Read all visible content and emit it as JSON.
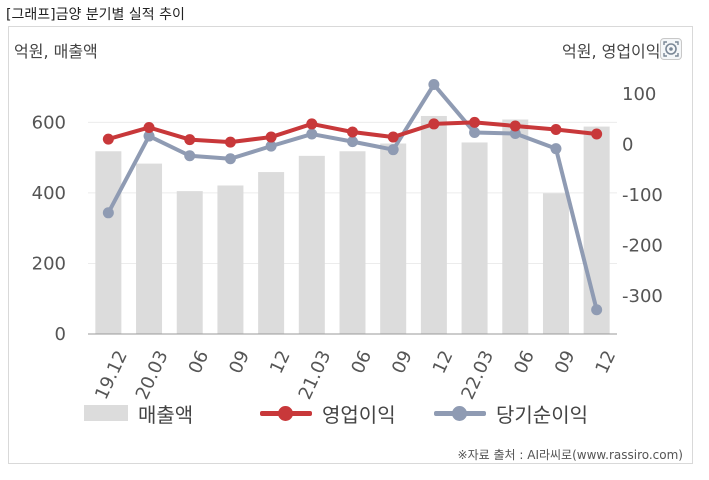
{
  "page_title": "[그래프]금양 분기별 실적 추이",
  "source_note": "※자료 출처 : AI라씨로(www.rassiro.com)",
  "corner_icon": "chart-settings-icon",
  "chart_data": {
    "type": "bar+line",
    "left_axis_title": "억원, 매출액",
    "right_axis_title": "억원, 영업이익",
    "categories": [
      "19.12",
      "20.03",
      "06",
      "09",
      "12",
      "21.03",
      "06",
      "09",
      "12",
      "22.03",
      "06",
      "09",
      "12"
    ],
    "left_ticks": [
      "0",
      "200",
      "400",
      "600"
    ],
    "right_ticks": [
      "100",
      "0",
      "-100",
      "-200",
      "-300"
    ],
    "left_ylim": [
      0,
      720
    ],
    "right_ylim": [
      -375,
      128
    ],
    "grid": true,
    "legend_position": "bottom",
    "series": [
      {
        "name": "매출액",
        "kind": "bar",
        "axis": "left",
        "color": "#dcdcdc",
        "values": [
          518,
          483,
          405,
          421,
          459,
          505,
          518,
          540,
          618,
          543,
          608,
          399,
          588
        ]
      },
      {
        "name": "영업이익",
        "kind": "line",
        "axis": "right",
        "color": "#c8383a",
        "values": [
          11,
          34,
          10,
          5,
          15,
          41,
          25,
          15,
          41,
          44,
          37,
          30,
          21
        ]
      },
      {
        "name": "당기순이익",
        "kind": "line",
        "axis": "right",
        "color": "#8f9bb3",
        "values": [
          -135,
          17,
          -22,
          -28,
          -3,
          21,
          6,
          -10,
          119,
          24,
          22,
          -8,
          -327
        ]
      }
    ]
  }
}
